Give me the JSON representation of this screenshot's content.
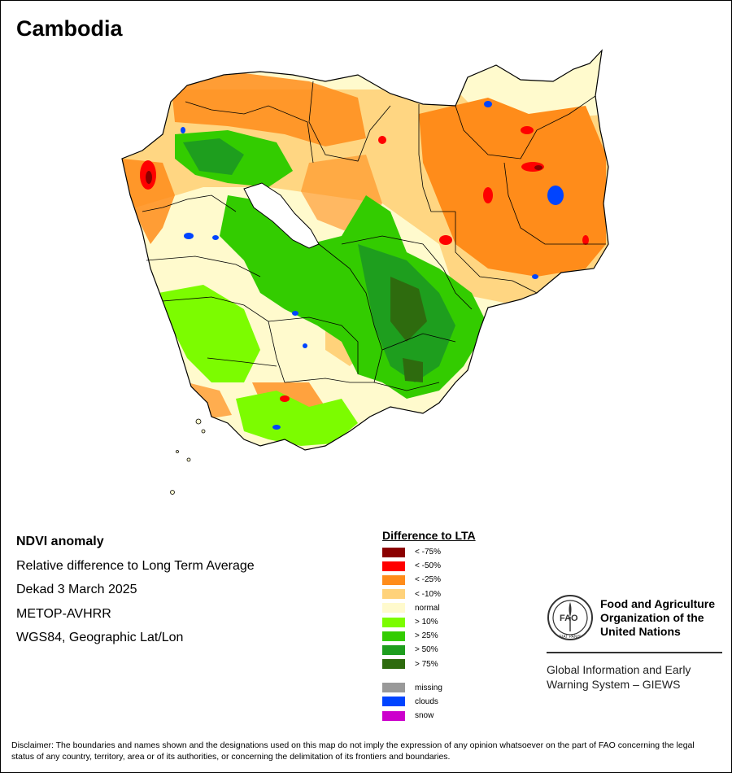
{
  "map": {
    "title": "Cambodia",
    "info_lines": [
      "NDVI anomaly",
      "Relative difference to Long Term Average",
      "Dekad 3 March 2025",
      "METOP-AVHRR",
      "WGS84, Geographic Lat/Lon"
    ]
  },
  "legend": {
    "title": "Difference to LTA",
    "classes": [
      {
        "label": "< -75%",
        "color": "#8b0000"
      },
      {
        "label": "< -50%",
        "color": "#ff0000"
      },
      {
        "label": "< -25%",
        "color": "#ff8c1a"
      },
      {
        "label": "< -10%",
        "color": "#ffd27a"
      },
      {
        "label": "normal",
        "color": "#fffacd"
      },
      {
        "label": "> 10%",
        "color": "#7cfc00"
      },
      {
        "label": "> 25%",
        "color": "#33cc00"
      },
      {
        "label": "> 50%",
        "color": "#1e9e1e"
      },
      {
        "label": "> 75%",
        "color": "#2e6b0e"
      }
    ],
    "extra": [
      {
        "label": "missing",
        "color": "#999999"
      },
      {
        "label": "clouds",
        "color": "#0044ff"
      },
      {
        "label": "snow",
        "color": "#cc00cc"
      }
    ]
  },
  "org": {
    "emblem_text": "FAO",
    "emblem_motto": "FIAT PANIS",
    "name_lines": [
      "Food and Agriculture",
      "Organization of the",
      "United Nations"
    ],
    "system_lines": [
      "Global Information and Early",
      "Warning System – GIEWS"
    ]
  },
  "disclaimer": "Disclaimer: The boundaries and names shown and the designations used on this map do not imply the expression of any opinion whatsoever on the part of FAO concerning the legal status of any country, territory, area or of its authorities, or concerning the delimitation of its frontiers and boundaries."
}
